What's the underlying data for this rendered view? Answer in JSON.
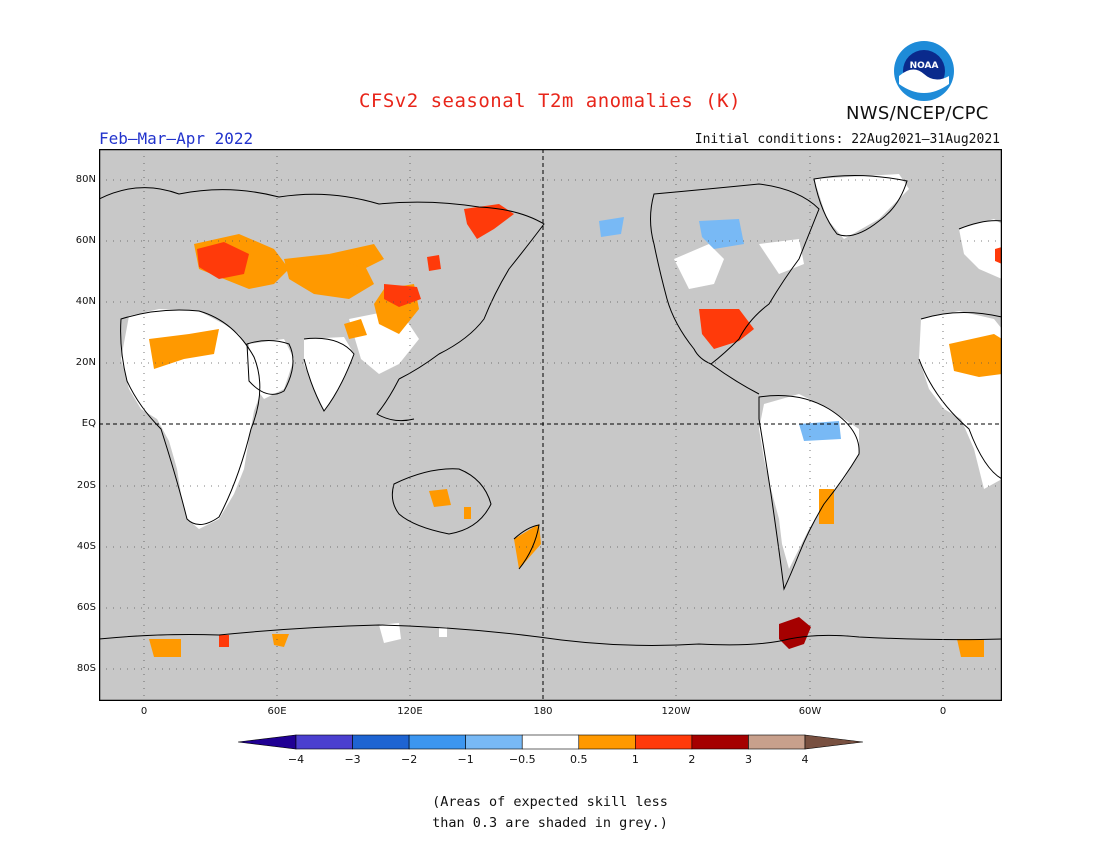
{
  "title": "CFSv2 seasonal T2m anomalies (K)",
  "agency": "NWS/NCEP/CPC",
  "logo_text": "NOAA",
  "period": "Feb–Mar–Apr 2022",
  "initial_conditions": "Initial conditions: 22Aug2021–31Aug2021",
  "footnote": [
    "(Areas of expected skill less",
    "than 0.3 are shaded in grey.)"
  ],
  "map": {
    "lat_labels": [
      "80N",
      "60N",
      "40N",
      "20N",
      "EQ",
      "20S",
      "40S",
      "60S",
      "80S"
    ],
    "lon_labels": [
      "0",
      "60E",
      "120E",
      "180",
      "120W",
      "60W",
      "0"
    ],
    "background_color": "#c8c8c8",
    "coastline_color": "#000000"
  },
  "legend": {
    "labels": [
      "−4",
      "−3",
      "−2",
      "−1",
      "−0.5",
      "0.5",
      "1",
      "2",
      "3",
      "4"
    ],
    "colors": [
      "#200094",
      "#4b3fcf",
      "#1e64d2",
      "#3c96f0",
      "#78b9f5",
      "#ffffff",
      "#ff9900",
      "#ff3a0a",
      "#a50000",
      "#c8a08c",
      "#785040"
    ]
  }
}
